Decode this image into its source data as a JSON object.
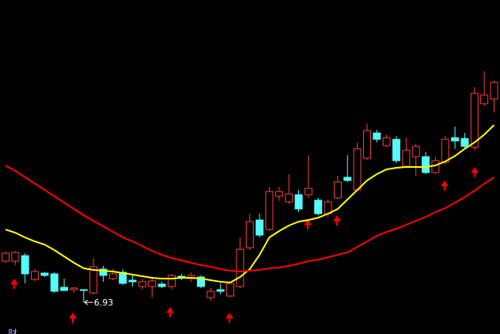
{
  "chart_data": {
    "type": "candlestick",
    "corner_label": "财",
    "ylim": [
      6.53,
      10.75
    ],
    "up_color": "#ff3c3c",
    "down_color": "#54fcfc",
    "open": [
      7.45,
      7.45,
      7.52,
      7.22,
      7.3,
      7.29,
      7.12,
      7.09,
      7.09,
      7.05,
      7.35,
      7.23,
      7.31,
      7.21,
      7.13,
      7.13,
      7.16,
      7.13,
      7.26,
      7.23,
      7.25,
      6.99,
      7.09,
      7.01,
      7.13,
      7.62,
      7.97,
      7.85,
      8.27,
      8.2,
      8.29,
      8.29,
      8.22,
      8.05,
      8.25,
      8.51,
      8.35,
      8.75,
      9.07,
      8.91,
      8.99,
      8.65,
      8.77,
      8.77,
      8.57,
      8.7,
      9.01,
      9.0,
      8.89,
      9.44,
      9.5
    ],
    "high": [
      7.57,
      7.58,
      7.55,
      7.35,
      7.31,
      7.31,
      7.23,
      7.12,
      7.09,
      7.49,
      7.39,
      7.35,
      7.35,
      7.27,
      7.23,
      7.23,
      7.19,
      7.29,
      7.29,
      7.31,
      7.27,
      7.11,
      7.17,
      7.19,
      7.75,
      8.05,
      8.05,
      8.39,
      8.39,
      8.55,
      8.35,
      8.79,
      8.25,
      8.23,
      8.53,
      8.79,
      8.95,
      9.19,
      9.11,
      9.05,
      9.03,
      9.01,
      8.93,
      8.83,
      8.77,
      9.03,
      9.15,
      9.07,
      9.65,
      9.85,
      9.73
    ],
    "low": [
      7.43,
      7.4,
      7.17,
      7.2,
      7.25,
      7.05,
      7.07,
      7.05,
      6.93,
      7.03,
      7.19,
      7.21,
      7.15,
      7.13,
      7.09,
      6.99,
      7.11,
      7.09,
      7.21,
      7.19,
      7.11,
      6.95,
      7.03,
      6.99,
      7.11,
      7.59,
      7.75,
      7.83,
      8.21,
      8.17,
      8.07,
      8.25,
      8.03,
      8.01,
      8.23,
      8.45,
      8.33,
      8.73,
      8.95,
      8.89,
      8.69,
      8.63,
      8.53,
      8.55,
      8.55,
      8.67,
      8.87,
      8.87,
      8.85,
      9.41,
      9.33
    ],
    "close": [
      7.55,
      7.56,
      7.29,
      7.32,
      7.27,
      7.07,
      7.08,
      7.11,
      7.08,
      7.38,
      7.27,
      7.29,
      7.17,
      7.19,
      7.19,
      7.2,
      7.13,
      7.27,
      7.24,
      7.27,
      7.13,
      7.07,
      7.07,
      7.17,
      7.6,
      7.95,
      7.78,
      8.33,
      8.33,
      8.3,
      8.11,
      8.37,
      8.05,
      8.2,
      8.45,
      8.47,
      8.87,
      9.1,
      8.99,
      9.01,
      8.72,
      8.85,
      8.9,
      8.57,
      8.72,
      8.99,
      8.97,
      8.9,
      9.57,
      9.55,
      9.71
    ],
    "lines": [
      {
        "color": "#ffff00",
        "values": [
          7.85,
          7.81,
          7.75,
          7.7,
          7.66,
          7.59,
          7.51,
          7.43,
          7.36,
          7.34,
          7.33,
          7.32,
          7.3,
          7.28,
          7.26,
          7.24,
          7.23,
          7.23,
          7.24,
          7.24,
          7.23,
          7.21,
          7.19,
          7.18,
          7.25,
          7.35,
          7.53,
          7.75,
          7.83,
          7.9,
          7.95,
          7.97,
          8.0,
          8.05,
          8.11,
          8.23,
          8.35,
          8.47,
          8.55,
          8.61,
          8.63,
          8.64,
          8.64,
          8.64,
          8.66,
          8.71,
          8.78,
          8.87,
          8.95,
          9.05,
          9.17
        ]
      },
      {
        "color": "#ff0000",
        "values": [
          8.66,
          8.59,
          8.51,
          8.43,
          8.35,
          8.27,
          8.19,
          8.11,
          8.03,
          7.96,
          7.89,
          7.82,
          7.75,
          7.7,
          7.64,
          7.58,
          7.53,
          7.49,
          7.46,
          7.43,
          7.4,
          7.38,
          7.35,
          7.33,
          7.32,
          7.33,
          7.34,
          7.36,
          7.37,
          7.39,
          7.42,
          7.45,
          7.47,
          7.5,
          7.53,
          7.56,
          7.63,
          7.7,
          7.77,
          7.82,
          7.86,
          7.91,
          7.96,
          8.01,
          8.07,
          8.12,
          8.19,
          8.26,
          8.34,
          8.43,
          8.51
        ]
      }
    ]
  }
}
